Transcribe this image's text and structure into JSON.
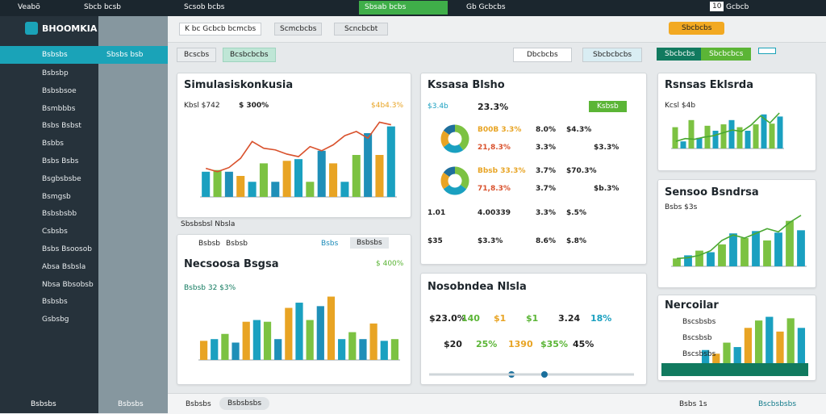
{
  "topbar": {
    "app": "Veabö",
    "tabs": [
      "Sbcb bcsb",
      "Scsob bcbs",
      "Sbsab bcbs",
      "Gb Gcbcbs"
    ],
    "right": [
      "10",
      "Gcbcb"
    ]
  },
  "sidebar": {
    "brand": "BHOOMKIA",
    "active": [
      "Bsbsbs",
      "Sbsbs bsb"
    ],
    "items": [
      "Bsbsbp",
      "Bsbsbsoe",
      "Bsmbbbs",
      "Bsbs Bsbst",
      "Bsbbs",
      "Bsbs Bsbs",
      "Bsgbsbsbe",
      "Bsmgsb",
      "Bsbsbsbb",
      "Csbsbs",
      "Bsbs Bsoosob",
      "Absa Bsbsla",
      "Nbsa Bbsobsb",
      "Bsbsbs",
      "Gsbsbg"
    ],
    "footer": [
      "Bsbsbs",
      "Bsbsbs"
    ]
  },
  "header": {
    "filters": [
      "K bc Gcbcb bcmcbs",
      "Scmcbcbs",
      "Scncbcbt"
    ],
    "tabs": [
      "Bcscbs",
      "Bcsbcbcbs"
    ],
    "buttons": [
      "Dbcbcbs",
      "Sbcbcbcbs"
    ],
    "actions": [
      "Sbcbcbs",
      "Sbcbcbs",
      "Sbcbcbcs"
    ]
  },
  "panels": [
    {
      "title": "Simulasiskonkusia",
      "stats": [
        "Kbsl $742",
        "$ 300%",
        "$4b4.3%"
      ],
      "footnote": "Sbsbsbsl Nbsla",
      "bars": [
        3,
        3.2,
        3,
        2.5,
        1.8,
        4,
        1.8,
        4.3,
        4.5,
        1.8,
        5.5,
        4,
        1.8,
        5,
        7.6,
        5,
        8.4
      ],
      "line": [
        3.4,
        3,
        3.5,
        4.6,
        6.6,
        5.8,
        5.6,
        5.1,
        4.8,
        6,
        5.5,
        6.2,
        7.3,
        7.8,
        7,
        8.9,
        8.6
      ],
      "colors": [
        "#1aa0c0",
        "#7cc242",
        "#1f8fb8",
        "#e8a424"
      ]
    },
    {
      "title": "Necsoosa Bsgsa",
      "stats": [
        "Bsbsb 32 $3%",
        "$ 400%"
      ],
      "toolbar": [
        "Bsbsb",
        "Bsbsb",
        "Bsbs",
        "Bsbsbs"
      ],
      "bars": [
        2.2,
        2.4,
        3,
        2,
        4.4,
        4.6,
        4.4,
        2.4,
        6,
        6.6,
        4.6,
        6.2,
        7.3,
        2.4,
        3.2,
        2.4,
        4.2,
        2.2,
        2.4
      ],
      "colors": [
        "#e8a424",
        "#1aa0c0",
        "#7cc242",
        "#1f8fb8"
      ]
    },
    {
      "title": "Kssasa Blsho",
      "stats": [
        "$3.4b",
        "23.3%",
        "Ksbsb"
      ],
      "rows": [
        [
          "B00B 3.3%",
          "21,8.3%",
          "8.0%",
          "3.3%",
          "$4.3%",
          "$3.3%"
        ],
        [
          "Bbsb 33.3%",
          "71,8.3%",
          "3.7%",
          "3.7%",
          "$70.3%",
          "$b.3%"
        ],
        [
          "1.01",
          "4.00339",
          "3.3%",
          "$.5%"
        ],
        [
          "$35",
          "$3.3%",
          "8.6%",
          "$.8%"
        ]
      ],
      "donuts": [
        [
          40,
          25,
          20,
          15
        ],
        [
          35,
          30,
          20,
          15
        ]
      ],
      "colors": [
        "#7cc242",
        "#1aa0c0",
        "#e8a424",
        "#1f6f9c"
      ]
    },
    {
      "title": "Nosobndea Nlsla",
      "stats": [
        "$23.0%",
        "140",
        "$1",
        "$1",
        "3.24",
        "18%",
        "$20",
        "25%",
        "1390",
        "$35%",
        "45%"
      ],
      "progress": [
        60,
        84
      ]
    },
    {
      "title": "Rsnsas Eklsrda",
      "stats": [
        "Kcsl $4b"
      ],
      "bars": [
        3,
        1,
        4,
        1.5,
        3.2,
        2.5,
        3.4,
        4,
        3,
        2.5,
        3.4,
        4.8,
        3.5,
        4.5
      ],
      "line": [
        1,
        1.4,
        1.3,
        1.6,
        1.8,
        2.2,
        2.6,
        2.4,
        3.3,
        4.6,
        3.6,
        5
      ],
      "colors": [
        "#7cc242",
        "#1aa0c0"
      ]
    },
    {
      "title": "Sensoo Bsndrsa",
      "stats": [
        "Bsbs $3s"
      ],
      "bars": [
        1,
        1.4,
        2,
        1.8,
        2.8,
        4.2,
        3.6,
        4.5,
        3.3,
        4.3,
        5.8,
        4.6
      ],
      "line": [
        1,
        1.1,
        1.4,
        2,
        3.3,
        4,
        3.6,
        4.2,
        4.8,
        4.4,
        5.6,
        6.5
      ],
      "colors": [
        "#7cc242",
        "#1aa0c0"
      ]
    },
    {
      "title": "Nercoilar",
      "rows": [
        "Bscsbsbs",
        "Bscsbsb",
        "Bscsbsbs"
      ],
      "bars": [
        2,
        1.5,
        3,
        2.4,
        5,
        6,
        6.5,
        4.5,
        6.3,
        5
      ],
      "colors": [
        "#1aa0c0",
        "#e8a424",
        "#7cc242"
      ]
    }
  ],
  "footer": {
    "left": [
      "Bsbsbs",
      "Bsbsbsbs"
    ],
    "right": [
      "Bsbs 1s",
      "Bscbsbsbs"
    ]
  }
}
